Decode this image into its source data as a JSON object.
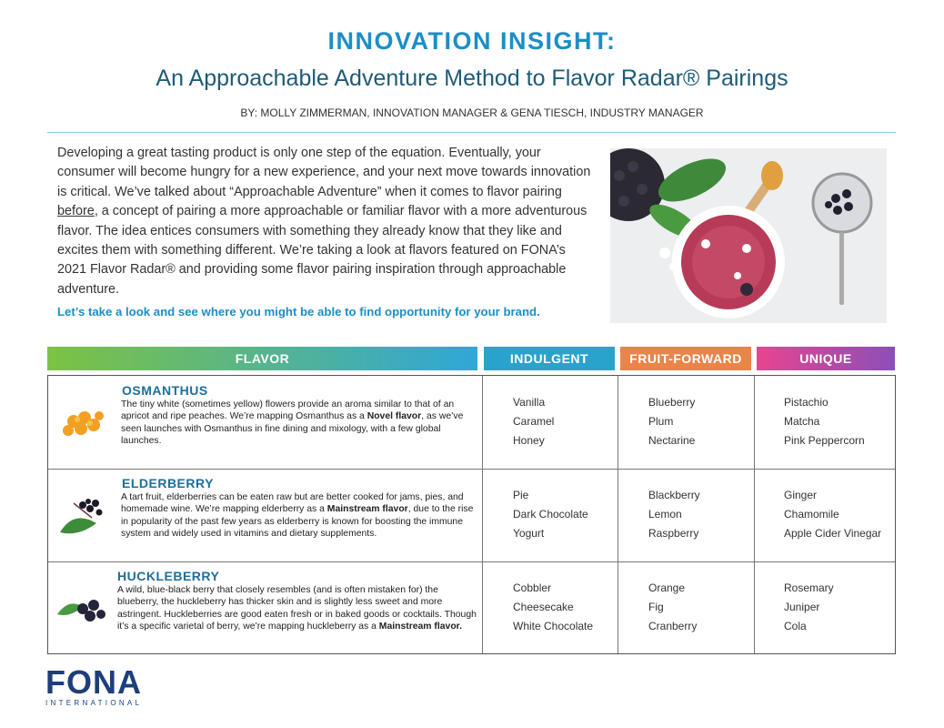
{
  "header": {
    "title": "INNOVATION INSIGHT:",
    "subtitle": "An Approachable Adventure Method to Flavor Radar® Pairings",
    "byline": "BY: MOLLY ZIMMERMAN, INNOVATION MANAGER & GENA TIESCH, INDUSTRY MANAGER"
  },
  "intro": {
    "parts": [
      "Developing a great tasting product is only one step of the equation. Eventually, your consumer will become hungry for a new experience, and your next move towards innovation is critical. We’ve talked about “Approachable Adventure” when it comes to flavor pairing ",
      "before",
      ", a concept of pairing a more approachable or familiar flavor with a more adventurous flavor. The idea entices consumers with something they already know that they like and excites them with something different. We’re taking a look at flavors featured on FONA’s 2021 Flavor Radar® and providing some flavor pairing inspiration through approachable adventure."
    ],
    "callout": "Let’s take a look and see where you might be able to find opportunity for your brand."
  },
  "table": {
    "headers": [
      "FLAVOR",
      "INDULGENT",
      "FRUIT-FORWARD",
      "UNIQUE"
    ],
    "rows": [
      {
        "name": "OSMANTHUS",
        "description": [
          "The tiny white (sometimes yellow) flowers provide an aroma similar to that of an apricot and ripe peaches. We’re mapping Osmanthus as a ",
          "Novel flavor",
          ", as we’ve seen launches with Osmanthus in fine dining and mixology, with a few global launches."
        ],
        "indulgent": [
          "Vanilla",
          "Caramel",
          "Honey"
        ],
        "fruit_forward": [
          "Blueberry",
          "Plum",
          "Nectarine"
        ],
        "unique": [
          "Pistachio",
          "Matcha",
          "Pink Peppercorn"
        ]
      },
      {
        "name": "ELDERBERRY",
        "description": [
          "A tart fruit, elderberries can be eaten raw but are better cooked for jams, pies, and homemade wine. We’re mapping elderberry as a ",
          "Mainstream flavor",
          ", due to the rise in popularity of the past few years as elderberry is known for boosting the immune system and widely used in vitamins and dietary supplements."
        ],
        "indulgent": [
          "Pie",
          "Dark Chocolate",
          "Yogurt"
        ],
        "fruit_forward": [
          "Blackberry",
          "Lemon",
          "Raspberry"
        ],
        "unique": [
          "Ginger",
          "Chamomile",
          "Apple Cider Vinegar"
        ]
      },
      {
        "name": "HUCKLEBERRY",
        "description": [
          "A wild, blue-black berry that closely resembles (and is often mistaken for) the blueberry, the huckleberry has thicker skin and is slightly less sweet and more astringent. Huckleberries are good eaten fresh or in baked goods or cocktails. Though it’s a specific varietal of berry, we’re mapping huckleberry as a ",
          "Mainstream flavor."
        ],
        "indulgent": [
          "Cobbler",
          "Cheesecake",
          "White Chocolate"
        ],
        "fruit_forward": [
          "Orange",
          "Fig",
          "Cranberry"
        ],
        "unique": [
          "Rosemary",
          "Juniper",
          "Cola"
        ]
      }
    ]
  },
  "footer": {
    "logo": "FONA",
    "tagline": "INTERNATIONAL"
  }
}
